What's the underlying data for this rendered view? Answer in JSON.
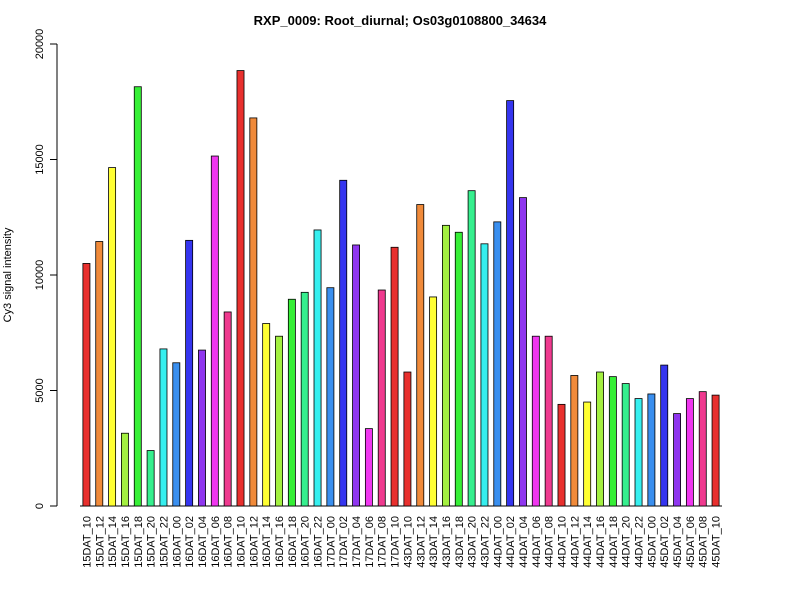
{
  "chart_data": {
    "type": "bar",
    "title": "RXP_0009: Root_diurnal; Os03g0108800_34634",
    "ylabel": "Cy3 signal intensity",
    "xlabel": "",
    "ylim": [
      0,
      20000
    ],
    "yticks": [
      0,
      5000,
      10000,
      15000,
      20000
    ],
    "grid": false,
    "legend": "none",
    "categories": [
      "15DAT_10",
      "15DAT_12",
      "15DAT_14",
      "15DAT_16",
      "15DAT_18",
      "15DAT_20",
      "15DAT_22",
      "16DAT_00",
      "16DAT_02",
      "16DAT_04",
      "16DAT_06",
      "16DAT_08",
      "16DAT_10",
      "16DAT_12",
      "16DAT_14",
      "16DAT_16",
      "16DAT_18",
      "16DAT_20",
      "16DAT_22",
      "17DAT_00",
      "17DAT_02",
      "17DAT_04",
      "17DAT_06",
      "17DAT_08",
      "17DAT_10",
      "43DAT_10",
      "43DAT_12",
      "43DAT_14",
      "43DAT_16",
      "43DAT_18",
      "43DAT_20",
      "43DAT_22",
      "44DAT_00",
      "44DAT_02",
      "44DAT_04",
      "44DAT_06",
      "44DAT_08",
      "44DAT_10",
      "44DAT_12",
      "44DAT_14",
      "44DAT_16",
      "44DAT_18",
      "44DAT_20",
      "44DAT_22",
      "45DAT_00",
      "45DAT_02",
      "45DAT_04",
      "45DAT_06",
      "45DAT_08",
      "45DAT_10"
    ],
    "values": [
      10500,
      11450,
      14650,
      3150,
      18150,
      2400,
      6800,
      6200,
      11500,
      6750,
      15150,
      8400,
      18850,
      16800,
      7900,
      7350,
      8950,
      9250,
      11950,
      9450,
      14100,
      11300,
      3350,
      9350,
      11200,
      5800,
      13050,
      9050,
      12150,
      11850,
      13650,
      11350,
      12300,
      17550,
      13350,
      7350,
      7350,
      4400,
      5650,
      4500,
      5800,
      5600,
      5300,
      4650,
      4850,
      6100,
      4000,
      4650,
      4950,
      4800
    ],
    "colors": [
      "#e8302e",
      "#f08a3a",
      "#ffff33",
      "#a3f040",
      "#36ef36",
      "#36ef8e",
      "#36efef",
      "#3a8fef",
      "#3535ef",
      "#8f36ef",
      "#ef36ef",
      "#ef3a8f",
      "#e8302e",
      "#f08a3a",
      "#ffff33",
      "#a3f040",
      "#36ef36",
      "#36ef8e",
      "#36efef",
      "#3a8fef",
      "#3535ef",
      "#8f36ef",
      "#ef36ef",
      "#ef3a8f",
      "#e8302e",
      "#e8302e",
      "#f08a3a",
      "#ffff33",
      "#a3f040",
      "#36ef36",
      "#36ef8e",
      "#36efef",
      "#3a8fef",
      "#3535ef",
      "#8f36ef",
      "#ef36ef",
      "#ef3a8f",
      "#e8302e",
      "#f08a3a",
      "#ffff33",
      "#a3f040",
      "#36ef36",
      "#36ef8e",
      "#36efef",
      "#3a8fef",
      "#3535ef",
      "#8f36ef",
      "#ef36ef",
      "#ef3a8f",
      "#e8302e"
    ]
  }
}
